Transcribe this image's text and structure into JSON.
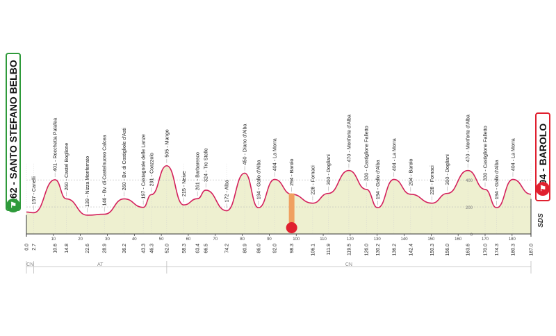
{
  "chart_data": {
    "type": "area",
    "start_label": "162 - SANTO STEFANO BELBO",
    "finish_label": "294 - BAROLO",
    "sds_label": "SDS",
    "y_grid_labels": [
      "400",
      "200",
      "0"
    ],
    "ylim": [
      0,
      700
    ],
    "xlim": [
      0,
      187
    ],
    "distance_ticks": [
      0,
      10,
      20,
      30,
      40,
      50,
      60,
      70,
      80,
      90,
      100,
      110,
      120,
      130,
      140,
      150,
      160,
      170,
      180
    ],
    "km_markers": [
      "0.0",
      "2.7",
      "10.6",
      "14.8",
      "22.6",
      "28.9",
      "36.2",
      "43.3",
      "46.3",
      "52.0",
      "58.3",
      "63.4",
      "66.5",
      "74.2",
      "80.9",
      "86.0",
      "92.0",
      "98.3",
      "106.1",
      "111.9",
      "119.5",
      "126.0",
      "130.2",
      "136.2",
      "142.4",
      "150.3",
      "156.0",
      "163.6",
      "170.0",
      "174.3",
      "180.3",
      "187.0"
    ],
    "points": [
      {
        "km": 0.0,
        "alt": 162,
        "label": ""
      },
      {
        "km": 2.7,
        "alt": 157,
        "label": "157 - Canelli"
      },
      {
        "km": 10.6,
        "alt": 401,
        "label": "401 - Rocchetta Palafea"
      },
      {
        "km": 14.8,
        "alt": 260,
        "label": "260 - Castel Boglione"
      },
      {
        "km": 22.6,
        "alt": 139,
        "label": "139 - Nizza Monferrato"
      },
      {
        "km": 28.9,
        "alt": 146,
        "label": "146 - Bv. di Castelnuovo Calcea"
      },
      {
        "km": 36.2,
        "alt": 260,
        "label": "260 - Bv. di Costigliole d'Asti"
      },
      {
        "km": 43.3,
        "alt": 197,
        "label": "197 - Castagnole delle Lanze"
      },
      {
        "km": 46.3,
        "alt": 291,
        "label": "291 - Coazzolo"
      },
      {
        "km": 52.0,
        "alt": 505,
        "label": "505 - Mango"
      },
      {
        "km": 58.3,
        "alt": 215,
        "label": "215 - Neive"
      },
      {
        "km": 63.4,
        "alt": 261,
        "label": "261 - Barbaresco"
      },
      {
        "km": 66.5,
        "alt": 324,
        "label": "324 - Tre Stelle"
      },
      {
        "km": 74.2,
        "alt": 172,
        "label": "172 - Alba"
      },
      {
        "km": 80.9,
        "alt": 450,
        "label": "450 - Diano d'Alba"
      },
      {
        "km": 86.0,
        "alt": 194,
        "label": "194 - Gallo d'Alba"
      },
      {
        "km": 92.0,
        "alt": 404,
        "label": "404 - La Morra"
      },
      {
        "km": 98.3,
        "alt": 294,
        "label": "294 - Barolo"
      },
      {
        "km": 106.1,
        "alt": 228,
        "label": "228 - Fornaci"
      },
      {
        "km": 111.9,
        "alt": 300,
        "label": "300 - Dogliani"
      },
      {
        "km": 119.5,
        "alt": 470,
        "label": "470 - Monforte d'Alba"
      },
      {
        "km": 126.0,
        "alt": 330,
        "label": "330 - Castiglione Falletto"
      },
      {
        "km": 130.2,
        "alt": 194,
        "label": "194 - Gallo d'Alba"
      },
      {
        "km": 136.2,
        "alt": 404,
        "label": "404 - La Morra"
      },
      {
        "km": 142.4,
        "alt": 294,
        "label": "294 - Barolo"
      },
      {
        "km": 150.3,
        "alt": 228,
        "label": "228 - Fornaci"
      },
      {
        "km": 156.0,
        "alt": 300,
        "label": "300 - Dogliani"
      },
      {
        "km": 163.6,
        "alt": 470,
        "label": "470 - Monforte d'Alba"
      },
      {
        "km": 170.0,
        "alt": 330,
        "label": "330 - Castiglione Falletto"
      },
      {
        "km": 174.3,
        "alt": 194,
        "label": "194 - Gallo d'Alba"
      },
      {
        "km": 180.3,
        "alt": 404,
        "label": "404 - La Morra"
      },
      {
        "km": 187.0,
        "alt": 294,
        "label": ""
      }
    ],
    "provinces": [
      {
        "code": "CN",
        "from": 0,
        "to": 2.7
      },
      {
        "code": "AT",
        "from": 2.7,
        "to": 52
      },
      {
        "code": "CN",
        "from": 52,
        "to": 187
      }
    ],
    "intermediate_sprint_km": 98.3,
    "intermediate_sprint_icon": "sprint-icon",
    "colors": {
      "line": "#d4205c",
      "fill": "#eef0d0",
      "grid": "#bbbbbb",
      "sprint": "#f0a060",
      "start": "#2e9a3a",
      "finish": "#e0202f",
      "text": "#222222"
    }
  }
}
